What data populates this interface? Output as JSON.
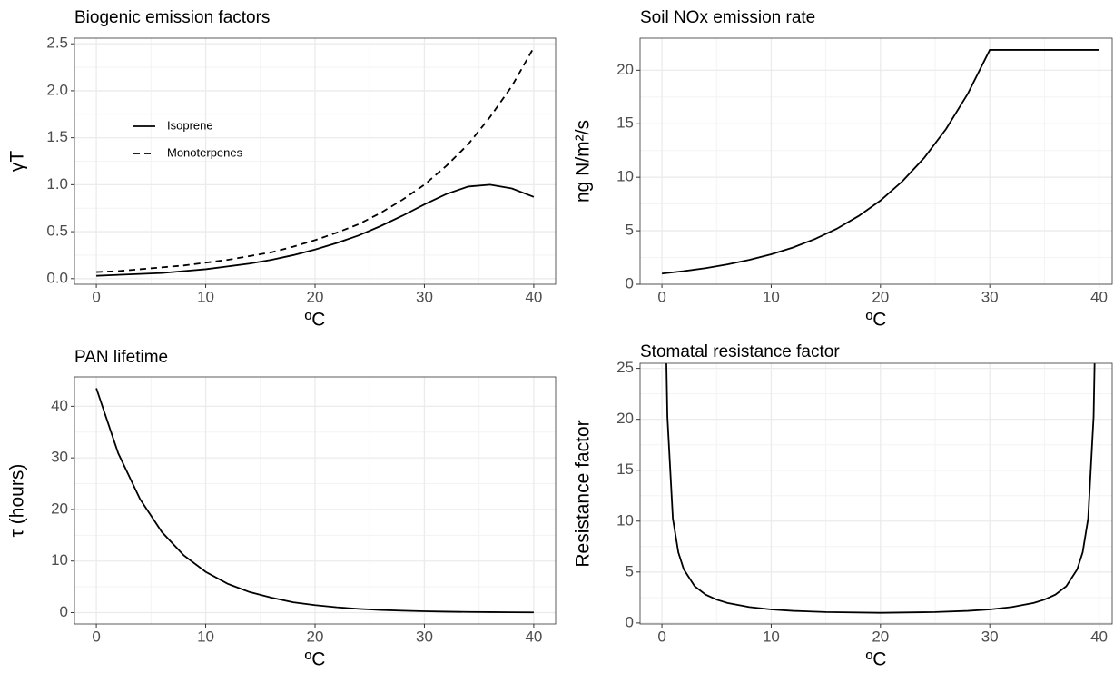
{
  "chart_data": [
    {
      "type": "line",
      "title": "Biogenic emission factors",
      "x_label": "ºC",
      "y_label": "γT",
      "x": [
        0,
        2,
        4,
        6,
        8,
        10,
        12,
        14,
        16,
        18,
        20,
        22,
        24,
        26,
        28,
        30,
        32,
        34,
        36,
        38,
        40
      ],
      "series": [
        {
          "name": "Isoprene",
          "color": "#000000",
          "linestyle": "solid",
          "values": [
            0.03,
            0.04,
            0.05,
            0.06,
            0.08,
            0.1,
            0.13,
            0.16,
            0.2,
            0.25,
            0.31,
            0.38,
            0.46,
            0.56,
            0.67,
            0.79,
            0.9,
            0.98,
            1.0,
            0.96,
            0.87
          ]
        },
        {
          "name": "Monoterpenes",
          "color": "#000000",
          "linestyle": "dashed",
          "values": [
            0.07,
            0.08,
            0.1,
            0.12,
            0.14,
            0.17,
            0.2,
            0.24,
            0.28,
            0.34,
            0.41,
            0.49,
            0.58,
            0.7,
            0.84,
            1.0,
            1.2,
            1.43,
            1.72,
            2.05,
            2.46
          ]
        }
      ],
      "xlim": [
        -2,
        42
      ],
      "ylim": [
        -0.06,
        2.56
      ],
      "xticks": [
        0,
        10,
        20,
        30,
        40
      ],
      "yticks": [
        {
          "value": 0,
          "label": "0.0"
        },
        0.5,
        {
          "value": 1,
          "label": "1.0"
        },
        1.5,
        {
          "value": 2,
          "label": "2.0"
        },
        2.5
      ],
      "grid": true,
      "legend_position": "top-left"
    },
    {
      "type": "line",
      "title": "Soil NOx emission rate",
      "x_label": "ºC",
      "y_label": "ng N/m²/s",
      "x": [
        0,
        2,
        4,
        6,
        8,
        10,
        12,
        14,
        16,
        18,
        20,
        22,
        24,
        26,
        28,
        30,
        32,
        34,
        36,
        38,
        40
      ],
      "series": [
        {
          "color": "#000000",
          "linestyle": "solid",
          "values": [
            1.0,
            1.23,
            1.51,
            1.86,
            2.28,
            2.8,
            3.44,
            4.23,
            5.19,
            6.38,
            7.83,
            9.62,
            11.81,
            14.51,
            17.83,
            21.9,
            21.9,
            21.9,
            21.9,
            21.9,
            21.9
          ]
        }
      ],
      "xlim": [
        -2,
        41.2
      ],
      "ylim": [
        0,
        23
      ],
      "xticks": [
        0,
        10,
        20,
        30,
        40
      ],
      "yticks": [
        0,
        5,
        10,
        15,
        20
      ],
      "grid": true
    },
    {
      "type": "line",
      "title": "PAN lifetime",
      "x_label": "ºC",
      "y_label": "τ (hours)",
      "x": [
        0,
        2,
        4,
        6,
        8,
        10,
        12,
        14,
        16,
        18,
        20,
        22,
        24,
        26,
        28,
        30,
        32,
        34,
        36,
        38,
        40
      ],
      "series": [
        {
          "color": "#000000",
          "linestyle": "solid",
          "values": [
            43.5,
            30.9,
            22.0,
            15.6,
            11.1,
            7.9,
            5.6,
            4.0,
            2.9,
            2.0,
            1.45,
            1.03,
            0.73,
            0.52,
            0.37,
            0.26,
            0.19,
            0.13,
            0.1,
            0.07,
            0.05
          ]
        }
      ],
      "xlim": [
        -2,
        42
      ],
      "ylim": [
        -2.2,
        45.7
      ],
      "xticks": [
        0,
        10,
        20,
        30,
        40
      ],
      "yticks": [
        0,
        10,
        20,
        30,
        40
      ],
      "grid": true
    },
    {
      "type": "line",
      "title": "Stomatal resistance factor",
      "x_label": "ºC",
      "y_label": "Resistance factor",
      "x": [
        0.35,
        0.5,
        1,
        1.5,
        2,
        3,
        4,
        5,
        6,
        8,
        10,
        12,
        15,
        20,
        25,
        28,
        30,
        32,
        34,
        35,
        36,
        37,
        38,
        38.5,
        39,
        39.5,
        39.65
      ],
      "series": [
        {
          "color": "#000000",
          "linestyle": "solid",
          "values": [
            28.82,
            20.25,
            10.26,
            6.93,
            5.26,
            3.6,
            2.78,
            2.29,
            1.96,
            1.56,
            1.33,
            1.19,
            1.07,
            1.0,
            1.07,
            1.19,
            1.33,
            1.56,
            1.96,
            2.29,
            2.78,
            3.6,
            5.26,
            6.93,
            10.26,
            20.25,
            28.82
          ]
        }
      ],
      "xlim": [
        -2,
        41.2
      ],
      "ylim": [
        -0.1,
        25.5
      ],
      "xticks": [
        0,
        10,
        20,
        30,
        40
      ],
      "yticks": [
        0,
        5,
        10,
        15,
        20,
        25
      ],
      "grid": true
    }
  ]
}
